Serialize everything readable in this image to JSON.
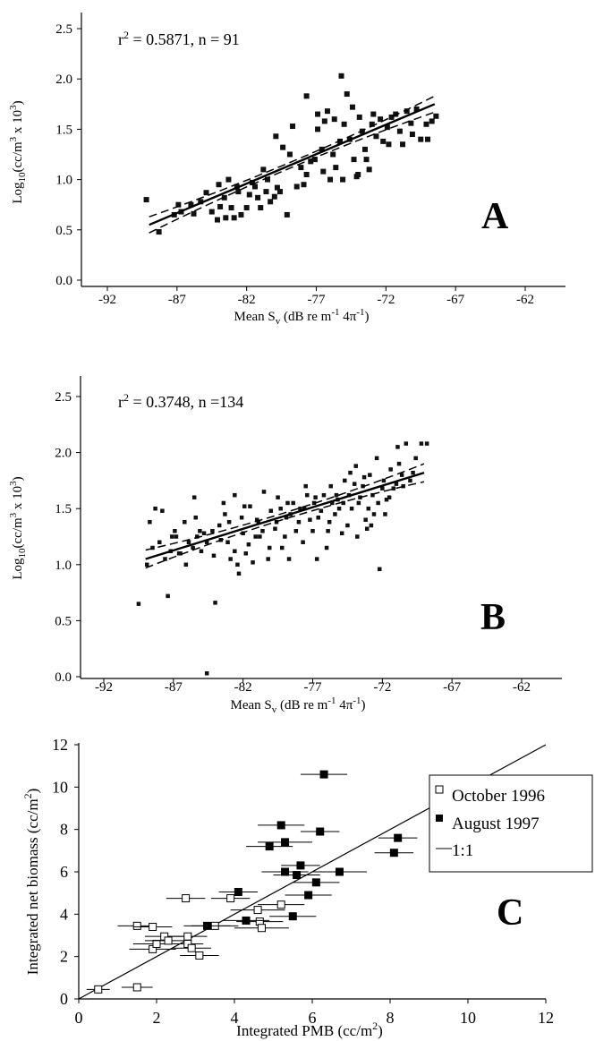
{
  "panels": {
    "A": {
      "letter": "A",
      "stat_r2": "r",
      "stat_sup": "2",
      "stat_rest": " = 0.5871, n = 91",
      "ylabel_main": "Log",
      "ylabel_sub": "10",
      "ylabel_mid": "(cc/m",
      "ylabel_sup1": "3",
      "ylabel_mid2": " x 10",
      "ylabel_sup2": "3",
      "ylabel_end": ")",
      "xlabel_main": "Mean S",
      "xlabel_sub": "v",
      "xlabel_mid": " (dB re m",
      "xlabel_sup1": "-1",
      "xlabel_mid2": " 4π",
      "xlabel_sup2": "-1",
      "xlabel_end": ")"
    },
    "B": {
      "letter": "B",
      "stat_r2": "r",
      "stat_sup": "2",
      "stat_rest": " = 0.3748, n =134",
      "ylabel_main": "Log",
      "ylabel_sub": "10",
      "ylabel_mid": "(cc/m",
      "ylabel_sup1": "3",
      "ylabel_mid2": " x 10",
      "ylabel_sup2": "3",
      "ylabel_end": ")",
      "xlabel_main": "Mean S",
      "xlabel_sub": "v",
      "xlabel_mid": " (dB re m",
      "xlabel_sup1": "-1",
      "xlabel_mid2": " 4π",
      "xlabel_sup2": "-1",
      "xlabel_end": ")"
    },
    "C": {
      "letter": "C",
      "ylabel_main": "Integrated net biomass (cc/m",
      "ylabel_sup": "2",
      "ylabel_end": ")",
      "xlabel_main": "Integrated PMB (cc/m",
      "xlabel_sup": "2",
      "xlabel_end": ")",
      "legend": [
        "October 1996",
        "August 1997",
        "1:1"
      ]
    }
  },
  "chart_data": [
    {
      "type": "scatter",
      "panel": "A",
      "xlim": [
        -92,
        -60
      ],
      "ylim": [
        0.0,
        2.5
      ],
      "xticks": [
        -92,
        -87,
        -82,
        -77,
        -72,
        -67,
        -62
      ],
      "yticks": [
        "0.0",
        "0.5",
        "1.0",
        "1.5",
        "2.0",
        "2.5"
      ],
      "regression": {
        "x": [
          -89,
          -68.5
        ],
        "y": [
          0.55,
          1.75
        ],
        "ci": 0.08
      },
      "points": [
        [
          -89.2,
          0.8
        ],
        [
          -88.3,
          0.48
        ],
        [
          -87.2,
          0.65
        ],
        [
          -86.7,
          0.68
        ],
        [
          -86.0,
          0.75
        ],
        [
          -85.3,
          0.78
        ],
        [
          -84.9,
          0.87
        ],
        [
          -84.5,
          0.68
        ],
        [
          -84.1,
          0.6
        ],
        [
          -84.0,
          0.95
        ],
        [
          -83.6,
          0.82
        ],
        [
          -83.5,
          0.62
        ],
        [
          -83.3,
          1.0
        ],
        [
          -83.1,
          0.72
        ],
        [
          -82.9,
          0.62
        ],
        [
          -82.7,
          0.93
        ],
        [
          -82.6,
          0.88
        ],
        [
          -82.4,
          0.65
        ],
        [
          -82.0,
          0.72
        ],
        [
          -81.6,
          0.97
        ],
        [
          -81.4,
          0.93
        ],
        [
          -81.2,
          0.82
        ],
        [
          -81.0,
          0.72
        ],
        [
          -80.8,
          1.1
        ],
        [
          -80.6,
          0.88
        ],
        [
          -80.3,
          0.78
        ],
        [
          -80.0,
          0.83
        ],
        [
          -79.8,
          0.92
        ],
        [
          -79.6,
          0.88
        ],
        [
          -79.4,
          1.32
        ],
        [
          -79.1,
          0.65
        ],
        [
          -78.7,
          1.53
        ],
        [
          -78.4,
          0.93
        ],
        [
          -78.1,
          1.12
        ],
        [
          -77.7,
          1.05
        ],
        [
          -77.4,
          1.18
        ],
        [
          -77.1,
          1.2
        ],
        [
          -76.9,
          1.5
        ],
        [
          -76.6,
          1.3
        ],
        [
          -76.4,
          1.58
        ],
        [
          -76.2,
          1.68
        ],
        [
          -76.0,
          1.0
        ],
        [
          -75.8,
          1.25
        ],
        [
          -75.6,
          1.12
        ],
        [
          -75.3,
          1.38
        ],
        [
          -75.0,
          1.55
        ],
        [
          -74.8,
          1.85
        ],
        [
          -74.6,
          1.4
        ],
        [
          -74.3,
          1.2
        ],
        [
          -74.1,
          1.03
        ],
        [
          -73.9,
          1.62
        ],
        [
          -73.7,
          1.48
        ],
        [
          -73.5,
          1.3
        ],
        [
          -73.2,
          1.1
        ],
        [
          -73.0,
          1.55
        ],
        [
          -72.7,
          1.43
        ],
        [
          -72.4,
          1.6
        ],
        [
          -72.2,
          1.38
        ],
        [
          -71.9,
          1.52
        ],
        [
          -71.6,
          1.62
        ],
        [
          -71.3,
          1.65
        ],
        [
          -71.0,
          1.48
        ],
        [
          -70.8,
          1.35
        ],
        [
          -70.5,
          1.68
        ],
        [
          -70.2,
          1.56
        ],
        [
          -69.8,
          1.7
        ],
        [
          -69.5,
          1.4
        ],
        [
          -69.1,
          1.55
        ],
        [
          -68.7,
          1.58
        ],
        [
          -68.4,
          1.63
        ],
        [
          -75.2,
          2.03
        ],
        [
          -77.7,
          1.83
        ],
        [
          -75.7,
          1.6
        ],
        [
          -74.4,
          1.72
        ],
        [
          -76.9,
          1.65
        ],
        [
          -72.9,
          1.65
        ],
        [
          -79.9,
          1.43
        ],
        [
          -83.9,
          0.73
        ],
        [
          -85.8,
          0.66
        ],
        [
          -86.9,
          0.75
        ],
        [
          -78.9,
          1.25
        ],
        [
          -77.9,
          0.95
        ],
        [
          -76.5,
          1.08
        ],
        [
          -75.1,
          1.0
        ],
        [
          -74.0,
          1.05
        ],
        [
          -73.4,
          1.2
        ],
        [
          -71.8,
          1.35
        ],
        [
          -70.1,
          1.45
        ],
        [
          -69.0,
          1.4
        ],
        [
          -81.8,
          0.85
        ],
        [
          -80.5,
          1.0
        ]
      ]
    },
    {
      "type": "scatter",
      "panel": "B",
      "xlim": [
        -92,
        -60
      ],
      "ylim": [
        0.0,
        2.5
      ],
      "xticks": [
        -92,
        -87,
        -82,
        -77,
        -72,
        -67,
        -62
      ],
      "yticks": [
        "0.0",
        "0.5",
        "1.0",
        "1.5",
        "2.0",
        "2.5"
      ],
      "regression": {
        "x": [
          -89,
          -69
        ],
        "y": [
          1.05,
          1.82
        ],
        "ci": 0.08
      },
      "points": [
        [
          -89.5,
          0.65
        ],
        [
          -88.9,
          1.0
        ],
        [
          -88.7,
          1.38
        ],
        [
          -88.3,
          1.5
        ],
        [
          -87.8,
          1.48
        ],
        [
          -87.4,
          0.72
        ],
        [
          -87.2,
          1.12
        ],
        [
          -86.8,
          1.25
        ],
        [
          -86.5,
          1.1
        ],
        [
          -86.2,
          1.38
        ],
        [
          -85.9,
          1.2
        ],
        [
          -85.5,
          1.6
        ],
        [
          -85.3,
          1.25
        ],
        [
          -85.0,
          1.12
        ],
        [
          -84.6,
          0.03
        ],
        [
          -84.2,
          1.3
        ],
        [
          -84.0,
          0.66
        ],
        [
          -83.7,
          1.35
        ],
        [
          -83.4,
          1.55
        ],
        [
          -83.1,
          1.2
        ],
        [
          -82.9,
          1.05
        ],
        [
          -82.6,
          1.62
        ],
        [
          -82.3,
          0.92
        ],
        [
          -82.0,
          1.28
        ],
        [
          -81.8,
          1.1
        ],
        [
          -81.5,
          1.52
        ],
        [
          -81.3,
          1.02
        ],
        [
          -81.0,
          1.4
        ],
        [
          -80.8,
          1.25
        ],
        [
          -80.5,
          1.65
        ],
        [
          -80.2,
          1.05
        ],
        [
          -80.0,
          1.48
        ],
        [
          -79.7,
          1.32
        ],
        [
          -79.5,
          1.6
        ],
        [
          -79.2,
          1.15
        ],
        [
          -78.9,
          1.42
        ],
        [
          -78.7,
          1.05
        ],
        [
          -78.4,
          1.55
        ],
        [
          -78.2,
          1.3
        ],
        [
          -77.9,
          1.5
        ],
        [
          -77.7,
          1.2
        ],
        [
          -77.4,
          1.62
        ],
        [
          -77.2,
          1.4
        ],
        [
          -76.9,
          1.55
        ],
        [
          -76.7,
          1.05
        ],
        [
          -76.4,
          1.48
        ],
        [
          -76.2,
          1.62
        ],
        [
          -75.9,
          1.3
        ],
        [
          -75.7,
          1.7
        ],
        [
          -75.4,
          1.45
        ],
        [
          -75.2,
          1.58
        ],
        [
          -74.9,
          1.28
        ],
        [
          -74.7,
          1.75
        ],
        [
          -74.4,
          1.62
        ],
        [
          -74.2,
          1.5
        ],
        [
          -73.9,
          1.88
        ],
        [
          -73.7,
          1.55
        ],
        [
          -73.4,
          1.7
        ],
        [
          -73.2,
          1.4
        ],
        [
          -72.9,
          1.8
        ],
        [
          -72.7,
          1.62
        ],
        [
          -72.4,
          1.95
        ],
        [
          -72.2,
          0.96
        ],
        [
          -71.9,
          1.75
        ],
        [
          -71.7,
          1.58
        ],
        [
          -71.4,
          1.85
        ],
        [
          -71.2,
          1.68
        ],
        [
          -70.9,
          2.05
        ],
        [
          -70.6,
          1.8
        ],
        [
          -70.3,
          2.08
        ],
        [
          -70.0,
          1.75
        ],
        [
          -69.6,
          1.95
        ],
        [
          -69.2,
          2.08
        ],
        [
          -68.8,
          2.08
        ],
        [
          -73.8,
          1.25
        ],
        [
          -74.5,
          1.35
        ],
        [
          -75.1,
          1.5
        ],
        [
          -73.1,
          1.32
        ],
        [
          -72.6,
          1.45
        ],
        [
          -76.0,
          1.15
        ],
        [
          -77.0,
          1.3
        ],
        [
          -78.0,
          1.38
        ],
        [
          -79.0,
          1.25
        ],
        [
          -80.1,
          1.15
        ],
        [
          -81.1,
          1.25
        ],
        [
          -82.1,
          1.42
        ],
        [
          -83.0,
          1.38
        ],
        [
          -84.1,
          1.08
        ],
        [
          -85.1,
          1.3
        ],
        [
          -86.1,
          1.0
        ],
        [
          -87.1,
          1.25
        ],
        [
          -88.0,
          1.2
        ],
        [
          -73.6,
          1.6
        ],
        [
          -74.0,
          1.72
        ],
        [
          -72.3,
          1.55
        ],
        [
          -71.5,
          1.6
        ],
        [
          -70.5,
          1.7
        ],
        [
          -75.6,
          1.55
        ],
        [
          -76.6,
          1.42
        ],
        [
          -77.6,
          1.5
        ],
        [
          -78.6,
          1.45
        ],
        [
          -79.6,
          1.38
        ],
        [
          -80.6,
          1.3
        ],
        [
          -81.6,
          1.18
        ],
        [
          -82.6,
          1.12
        ],
        [
          -83.6,
          1.22
        ],
        [
          -84.6,
          1.2
        ],
        [
          -85.6,
          1.15
        ],
        [
          -86.6,
          1.1
        ],
        [
          -87.6,
          1.05
        ],
        [
          -72.8,
          1.35
        ],
        [
          -74.8,
          1.55
        ],
        [
          -76.8,
          1.6
        ],
        [
          -78.8,
          1.55
        ],
        [
          -80.9,
          1.38
        ],
        [
          -73.3,
          1.78
        ],
        [
          -74.3,
          1.82
        ],
        [
          -75.3,
          1.62
        ],
        [
          -72.0,
          1.68
        ],
        [
          -71.0,
          1.72
        ],
        [
          -69.8,
          1.82
        ],
        [
          -77.5,
          1.7
        ],
        [
          -79.3,
          1.5
        ],
        [
          -81.9,
          1.52
        ],
        [
          -83.3,
          1.45
        ],
        [
          -85.4,
          1.42
        ],
        [
          -86.9,
          1.3
        ],
        [
          -88.5,
          1.15
        ],
        [
          -75.8,
          1.38
        ],
        [
          -73.0,
          1.5
        ],
        [
          -70.8,
          1.9
        ],
        [
          -71.8,
          1.45
        ],
        [
          -82.4,
          1.0
        ],
        [
          -84.8,
          1.28
        ]
      ]
    },
    {
      "type": "scatter",
      "panel": "C",
      "xlim": [
        0,
        12
      ],
      "ylim": [
        0,
        12
      ],
      "xticks": [
        0,
        2,
        4,
        6,
        8,
        10,
        12
      ],
      "yticks": [
        0,
        2,
        4,
        6,
        8,
        10,
        12
      ],
      "reference_line": {
        "name": "1:1",
        "x": [
          0,
          12
        ],
        "y": [
          0,
          12
        ]
      },
      "series": [
        {
          "name": "October 1996",
          "marker": "open-square",
          "points": [
            [
              0.5,
              0.45,
              0.3
            ],
            [
              1.5,
              0.55,
              0.4
            ],
            [
              1.5,
              3.45,
              0.5
            ],
            [
              1.9,
              3.4,
              0.5
            ],
            [
              1.9,
              2.35,
              0.6
            ],
            [
              2.0,
              2.6,
              0.6
            ],
            [
              2.2,
              2.95,
              0.5
            ],
            [
              2.3,
              2.75,
              0.6
            ],
            [
              2.75,
              4.75,
              0.5
            ],
            [
              2.8,
              2.95,
              0.5
            ],
            [
              2.8,
              2.6,
              0.4
            ],
            [
              2.9,
              2.4,
              0.5
            ],
            [
              3.1,
              2.05,
              0.5
            ],
            [
              3.5,
              3.45,
              0.6
            ],
            [
              3.9,
              4.75,
              0.5
            ],
            [
              4.6,
              4.2,
              0.7
            ],
            [
              4.65,
              3.65,
              0.6
            ],
            [
              4.7,
              3.35,
              0.7
            ],
            [
              5.2,
              4.45,
              0.6
            ]
          ]
        },
        {
          "name": "August 1997",
          "marker": "filled-square",
          "points": [
            [
              3.3,
              3.45,
              0.6
            ],
            [
              4.1,
              5.05,
              0.5
            ],
            [
              4.3,
              3.7,
              0.6
            ],
            [
              4.9,
              7.2,
              0.6
            ],
            [
              5.2,
              8.2,
              0.6
            ],
            [
              5.3,
              7.4,
              0.7
            ],
            [
              5.3,
              6.0,
              0.6
            ],
            [
              5.5,
              3.9,
              0.6
            ],
            [
              5.6,
              5.85,
              0.6
            ],
            [
              5.7,
              6.3,
              0.5
            ],
            [
              5.9,
              4.9,
              0.6
            ],
            [
              6.1,
              5.5,
              0.6
            ],
            [
              6.2,
              7.9,
              0.5
            ],
            [
              6.3,
              10.6,
              0.6
            ],
            [
              6.7,
              6.0,
              0.7
            ],
            [
              8.1,
              6.9,
              0.5
            ],
            [
              8.2,
              7.6,
              0.5
            ]
          ]
        }
      ]
    }
  ]
}
